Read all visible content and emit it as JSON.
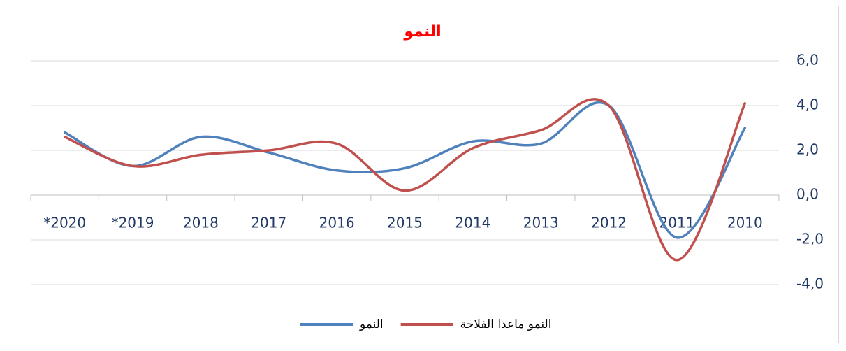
{
  "chart_data": {
    "type": "line",
    "title": "النمو",
    "categories": [
      "*2020",
      "*2019",
      "2018",
      "2017",
      "2016",
      "2015",
      "2014",
      "2013",
      "2012",
      "2011",
      "2010"
    ],
    "series": [
      {
        "name": "النمو",
        "color": "#4f81bd",
        "values": [
          2.8,
          1.3,
          2.6,
          1.9,
          1.1,
          1.2,
          2.4,
          2.3,
          4.0,
          -1.9,
          3.0
        ]
      },
      {
        "name": "النمو ماعدا الفلاحة",
        "color": "#c0504d",
        "values": [
          2.6,
          1.3,
          1.8,
          2.0,
          2.3,
          0.2,
          2.1,
          2.9,
          4.0,
          -2.9,
          4.1
        ]
      }
    ],
    "ylim": [
      -4,
      6
    ],
    "yticks": [
      {
        "value": -4,
        "label": "-4,0"
      },
      {
        "value": -2,
        "label": "-2,0"
      },
      {
        "value": 0,
        "label": "0,0"
      },
      {
        "value": 2,
        "label": "2,0"
      },
      {
        "value": 4,
        "label": "4,0"
      },
      {
        "value": 6,
        "label": "6,0"
      }
    ],
    "grid": true,
    "smooth": true,
    "legend": "bottom"
  }
}
